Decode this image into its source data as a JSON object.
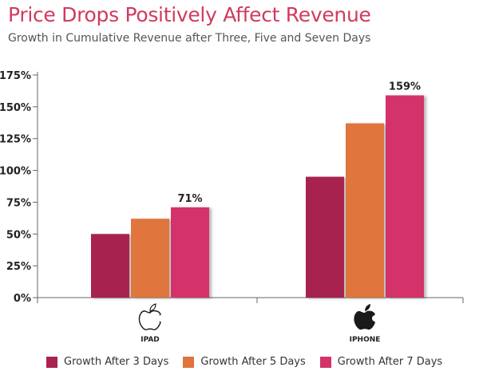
{
  "header": {
    "title": "Price Drops Positively Affect Revenue",
    "subtitle": "Growth in Cumulative Revenue after Three, Five and Seven Days"
  },
  "chart_data": {
    "type": "bar",
    "title": "Price Drops Positively Affect Revenue",
    "subtitle": "Growth in Cumulative Revenue after Three, Five and Seven Days",
    "categories": [
      "IPAD",
      "IPHONE"
    ],
    "category_icons": [
      "apple-outline-icon",
      "apple-filled-icon"
    ],
    "series": [
      {
        "name": "Growth After 3 Days",
        "color": "#a8244f",
        "values": [
          50,
          95
        ]
      },
      {
        "name": "Growth After 5 Days",
        "color": "#e0743c",
        "values": [
          62,
          137
        ]
      },
      {
        "name": "Growth After 7 Days",
        "color": "#d4336a",
        "values": [
          71,
          159
        ]
      }
    ],
    "data_labels": [
      {
        "category": "IPAD",
        "series": "Growth After 7 Days",
        "text": "71%"
      },
      {
        "category": "IPHONE",
        "series": "Growth After 7 Days",
        "text": "159%"
      }
    ],
    "y_ticks": [
      "0%",
      "25%",
      "50%",
      "75%",
      "100%",
      "125%",
      "150%",
      "175%"
    ],
    "y_tick_values": [
      0,
      25,
      50,
      75,
      100,
      125,
      150,
      175
    ],
    "ylim": [
      0,
      175
    ],
    "xlabel": "",
    "ylabel": "",
    "grid": false,
    "legend_position": "bottom"
  }
}
